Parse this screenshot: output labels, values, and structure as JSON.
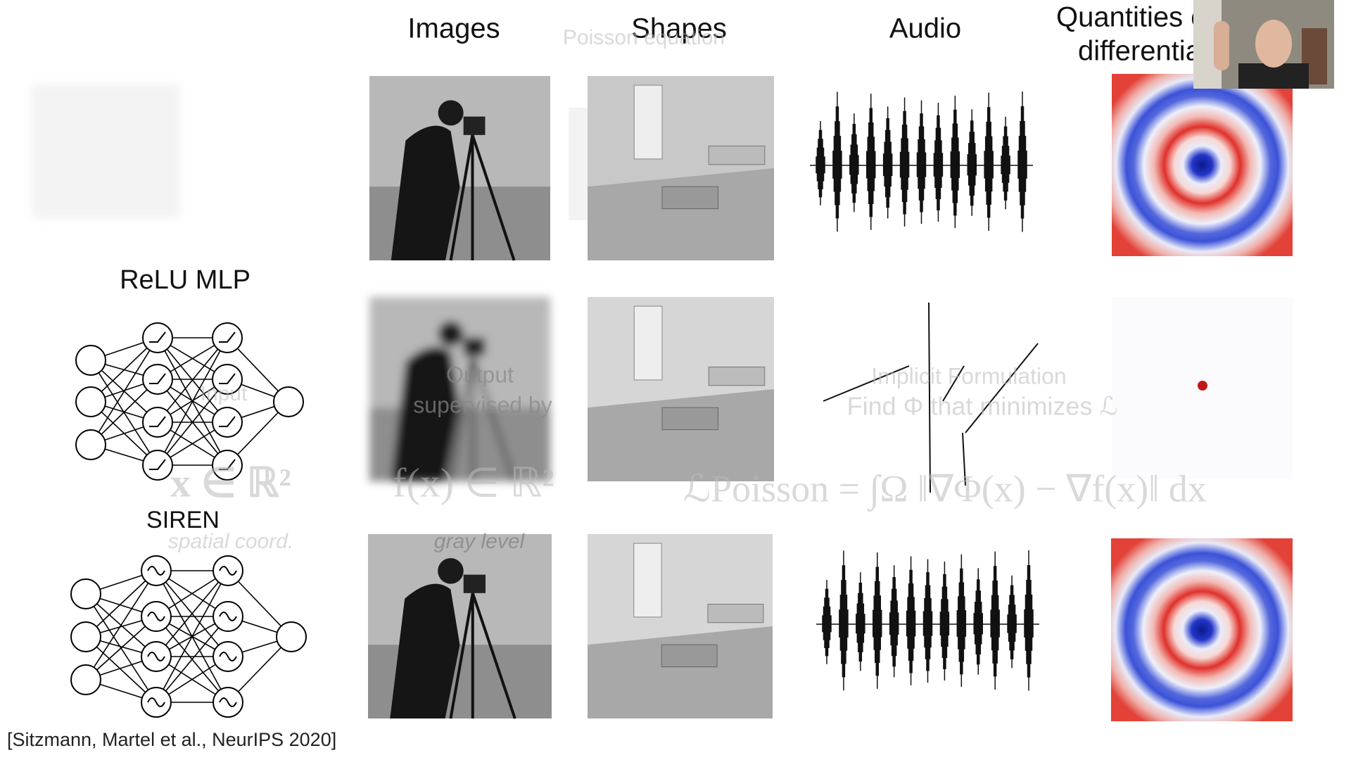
{
  "header": {
    "columns": [
      "Images",
      "Shapes",
      "Audio"
    ],
    "quantities_lines": [
      "Quantities o",
      "differentia"
    ]
  },
  "rows": [
    "ReLU MLP",
    "SIREN"
  ],
  "citation": "[Sitzmann, Martel et al., NeurIPS 2020]",
  "overlay": {
    "title": "Poisson equation",
    "input": "Input",
    "output": "Output",
    "supervised": "supervised by",
    "spatial": "spatial coord.",
    "gray": "gray level",
    "implicit": "Implicit Formulation",
    "find": "Find Φ that minimizes ℒ",
    "x_domain": "x ∈ ℝ²",
    "f_range": "f(x) ∈ ℝ²",
    "loss": "ℒPoisson = ∫Ω ‖∇Φ(x) − ∇f(x)‖ dx"
  }
}
